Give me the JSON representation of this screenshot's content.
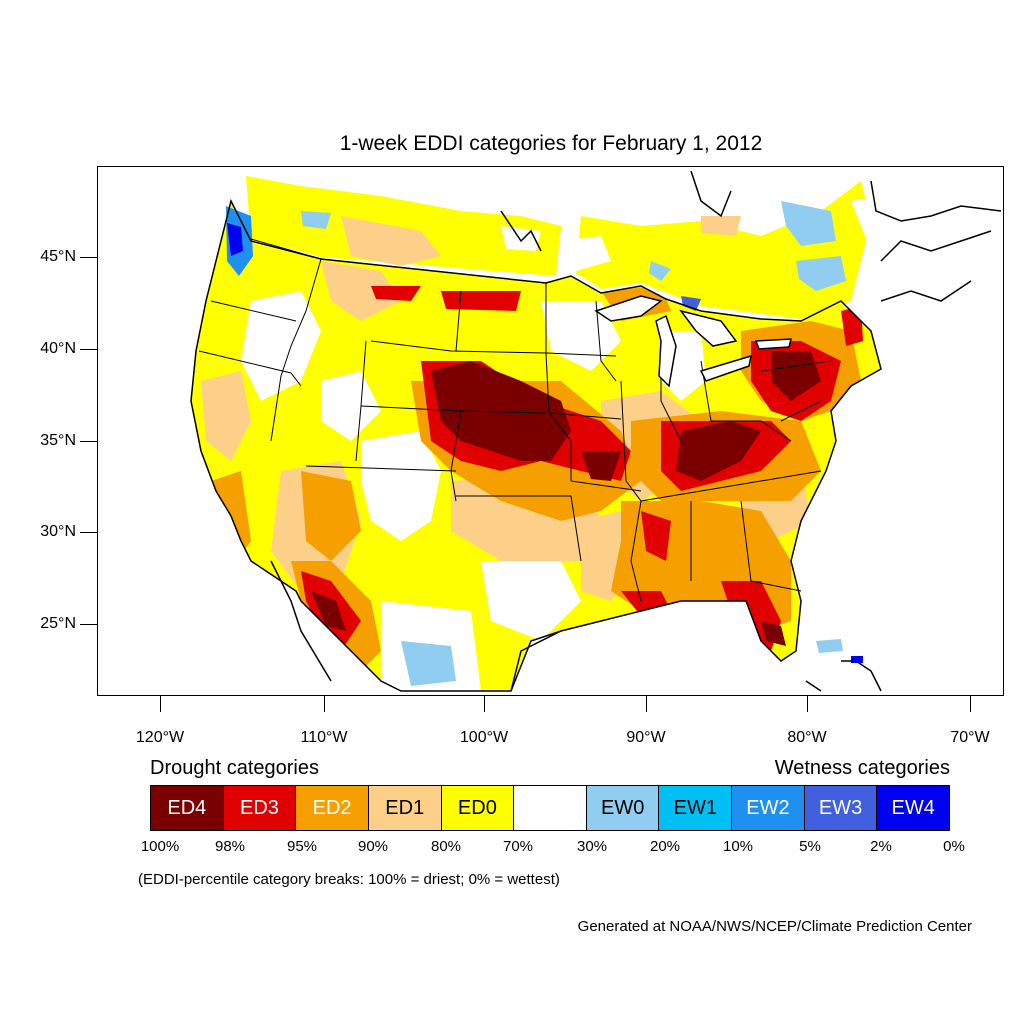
{
  "title": "1-week EDDI categories for February 1, 2012",
  "lat_labels": [
    "45°N",
    "40°N",
    "35°N",
    "30°N",
    "25°N"
  ],
  "lon_labels": [
    "120°W",
    "110°W",
    "100°W",
    "90°W",
    "80°W",
    "70°W"
  ],
  "legend": {
    "drought_heading": "Drought categories",
    "wetness_heading": "Wetness categories",
    "categories": [
      {
        "label": "ED4",
        "color": "#7a0000",
        "text_color": "#ffffff"
      },
      {
        "label": "ED3",
        "color": "#e00000",
        "text_color": "#ffffff"
      },
      {
        "label": "ED2",
        "color": "#f5a000",
        "text_color": "#ffffff"
      },
      {
        "label": "ED1",
        "color": "#fdd08a",
        "text_color": "#000000"
      },
      {
        "label": "ED0",
        "color": "#ffff00",
        "text_color": "#000000"
      },
      {
        "label": "",
        "color": "#ffffff",
        "text_color": "#000000"
      },
      {
        "label": "EW0",
        "color": "#90cdf0",
        "text_color": "#000000"
      },
      {
        "label": "EW1",
        "color": "#00bff5",
        "text_color": "#000000"
      },
      {
        "label": "EW2",
        "color": "#2090f0",
        "text_color": "#ffffff"
      },
      {
        "label": "EW3",
        "color": "#4060e0",
        "text_color": "#ffffff"
      },
      {
        "label": "EW4",
        "color": "#0000f0",
        "text_color": "#ffffff"
      }
    ],
    "percent_breaks": [
      "100%",
      "98%",
      "95%",
      "90%",
      "80%",
      "70%",
      "30%",
      "20%",
      "10%",
      "5%",
      "2%",
      "0%"
    ]
  },
  "note": "(EDDI-percentile category breaks: 100% = driest; 0% = wettest)",
  "credit": "Generated at NOAA/NWS/NCEP/Climate Prediction Center"
}
